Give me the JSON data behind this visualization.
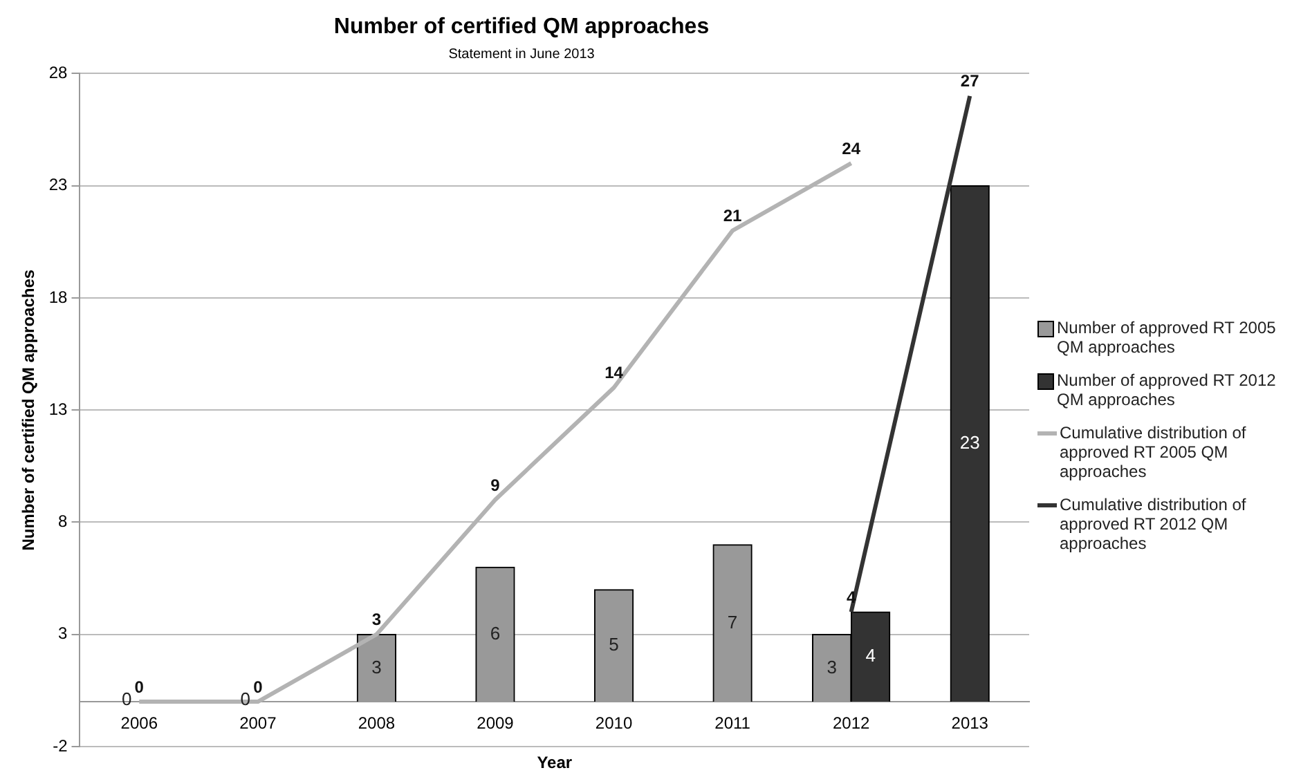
{
  "chart_data": {
    "type": "bar",
    "title": "Number of certified QM approaches",
    "subtitle": "Statement in June 2013",
    "xlabel": "Year",
    "ylabel": "Number of certified QM approaches",
    "categories": [
      "2006",
      "2007",
      "2008",
      "2009",
      "2010",
      "2011",
      "2012",
      "2013"
    ],
    "series": [
      {
        "name": "Number of approved RT 2005 QM approaches",
        "color": "#999999",
        "values": [
          0,
          0,
          3,
          6,
          5,
          7,
          3,
          null
        ]
      },
      {
        "name": "Number of approved RT 2012 QM approaches",
        "color": "#333333",
        "values": [
          null,
          null,
          null,
          null,
          null,
          null,
          4,
          23
        ]
      },
      {
        "name": "Cumulative distribution of approved RT 2005 QM approaches",
        "type": "line",
        "color": "#b3b3b3",
        "values": [
          0,
          0,
          3,
          9,
          14,
          21,
          24,
          null
        ]
      },
      {
        "name": "Cumulative distribution of approved RT 2012 QM approaches",
        "type": "line",
        "color": "#333333",
        "values": [
          null,
          null,
          null,
          null,
          null,
          null,
          4,
          27
        ]
      }
    ],
    "ylim": [
      -2,
      28
    ],
    "yticks": [
      -2,
      3,
      8,
      13,
      18,
      23,
      28
    ],
    "grid": "y",
    "legend": "right",
    "data_labels": true,
    "marker": "none"
  }
}
